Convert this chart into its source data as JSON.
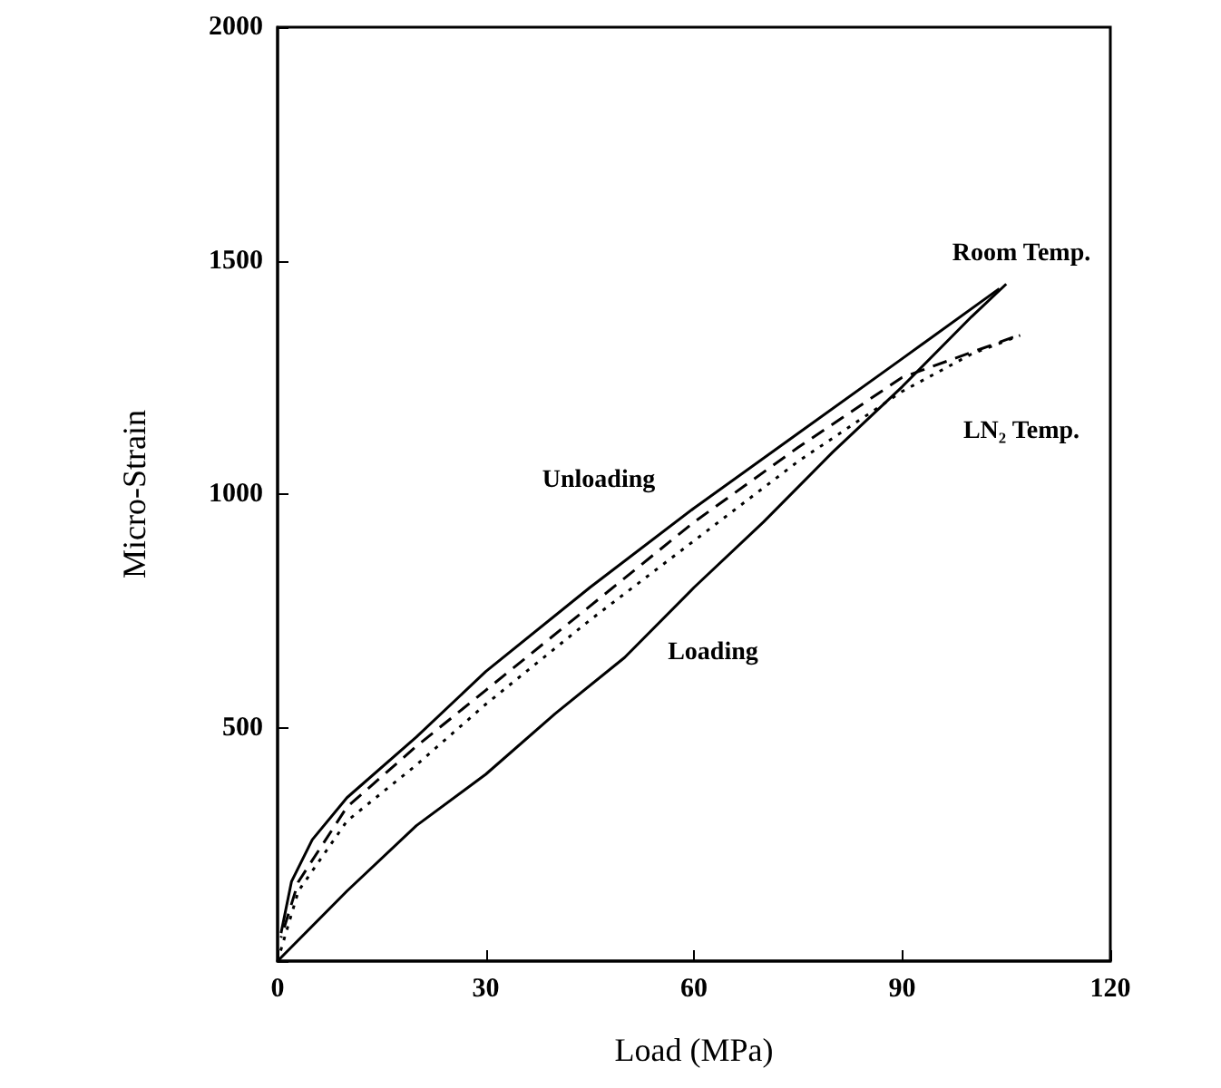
{
  "chart_data": {
    "type": "line",
    "xlabel": "Load (MPa)",
    "ylabel": "Micro-Strain",
    "xlim": [
      0,
      120
    ],
    "ylim": [
      0,
      2000
    ],
    "xticks": [
      0,
      30,
      60,
      90,
      120
    ],
    "yticks": [
      {
        "value": 0,
        "label": null
      },
      500,
      1000,
      1500,
      2000
    ],
    "grid": false,
    "marker": "none",
    "series": [
      {
        "color": "#000000",
        "line_style": "solid",
        "x": [
          0,
          10,
          20,
          30,
          40,
          50,
          60,
          70,
          80,
          90,
          100,
          105
        ],
        "values": [
          0,
          150,
          290,
          400,
          530,
          650,
          800,
          940,
          1090,
          1230,
          1380,
          1450
        ]
      },
      {
        "color": "#000000",
        "line_style": "solid",
        "x": [
          104,
          90,
          75,
          60,
          45,
          30,
          20,
          10,
          5,
          2,
          0.5
        ],
        "values": [
          1440,
          1290,
          1130,
          970,
          800,
          620,
          480,
          350,
          260,
          170,
          60
        ]
      },
      {
        "color": "#000000",
        "line_style": "dotted",
        "x": [
          0,
          3,
          10,
          20,
          30,
          45,
          60,
          75,
          90,
          100,
          107
        ],
        "values": [
          0,
          150,
          300,
          420,
          550,
          730,
          900,
          1070,
          1220,
          1300,
          1340
        ]
      },
      {
        "color": "#000000",
        "line_style": "dashed",
        "x": [
          106,
          90,
          75,
          60,
          45,
          30,
          20,
          10,
          3,
          0.5
        ],
        "values": [
          1336,
          1250,
          1100,
          940,
          760,
          580,
          460,
          330,
          170,
          50
        ]
      }
    ],
    "annotations": [
      "Room Temp.",
      "LN₂ Temp.",
      "Unloading",
      "Loading"
    ]
  }
}
